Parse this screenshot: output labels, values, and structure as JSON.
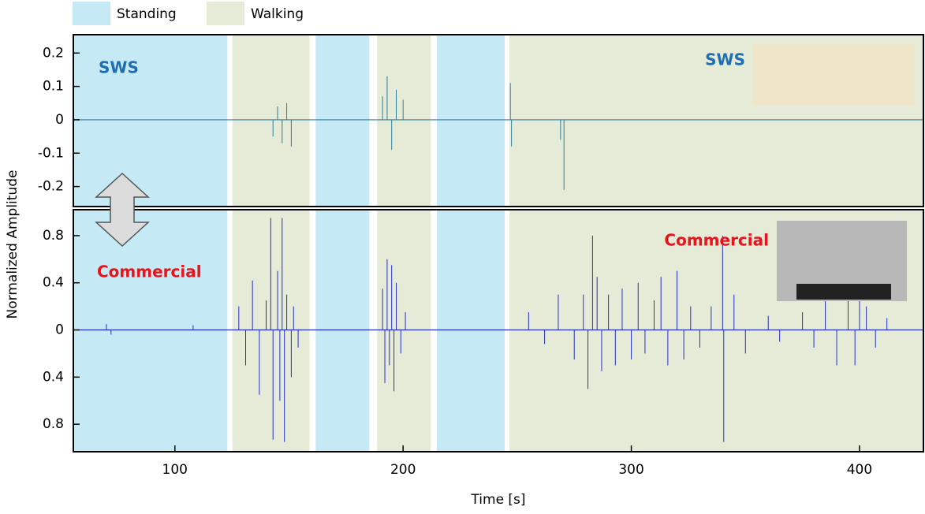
{
  "chart_data": [
    {
      "type": "spike",
      "label": "SWS",
      "label_color": "#1f6fb0",
      "color": "#2a7f9e",
      "y_label": "Normalized Amplitude",
      "regions": [
        {
          "name": "Standing",
          "color": "#c5e9f5",
          "spans": [
            [
              55.5,
              123
            ],
            [
              161.7,
              185.2
            ],
            [
              214.8,
              244.5
            ]
          ]
        },
        {
          "name": "Walking",
          "color": "#e6ebd8",
          "spans": [
            [
              125.2,
              159
            ],
            [
              188.6,
              212.1
            ],
            [
              246.6,
              428
            ]
          ]
        }
      ],
      "xlim": [
        55.5,
        428
      ],
      "ylim": [
        -0.26,
        0.255
      ],
      "yticks": [
        -0.2,
        -0.1,
        0,
        0.1,
        0.2
      ],
      "x": [
        143,
        145,
        147,
        149,
        151,
        191,
        193,
        195,
        197,
        200,
        247,
        247.5,
        269,
        270.5
      ],
      "values": [
        -0.05,
        0.04,
        -0.07,
        0.05,
        -0.08,
        0.07,
        0.13,
        -0.09,
        0.09,
        0.06,
        0.11,
        -0.08,
        -0.06,
        -0.21
      ]
    },
    {
      "type": "spike",
      "label": "Commercial",
      "label_color": "#e8141b",
      "color": "#2230c8",
      "x_label": "Time [s]",
      "xlim": [
        55.5,
        428
      ],
      "xticks": [
        100,
        200,
        300,
        400
      ],
      "ylim": [
        -1.033,
        1.02
      ],
      "yticks": [
        {
          "value": -0.8,
          "label": "0.8"
        },
        {
          "value": -0.4,
          "label": "0.4"
        },
        0,
        0.4,
        0.8
      ],
      "x": [
        70,
        72,
        108,
        128,
        131,
        134,
        137,
        140,
        142,
        143,
        145,
        146,
        147,
        148,
        149,
        151,
        152,
        154,
        191,
        192,
        193,
        194,
        195,
        196,
        197,
        199,
        201,
        255,
        262,
        268,
        275,
        279,
        281,
        283,
        285,
        287,
        290,
        293,
        296,
        300,
        303,
        306,
        310,
        313,
        316,
        320,
        323,
        326,
        330,
        335,
        340,
        340.5,
        345,
        350,
        360,
        365,
        375,
        380,
        385,
        390,
        395,
        398,
        400,
        403,
        407,
        412
      ],
      "values": [
        0.05,
        -0.04,
        0.04,
        0.2,
        -0.3,
        0.42,
        -0.55,
        0.25,
        0.95,
        -0.93,
        0.5,
        -0.6,
        0.95,
        -0.95,
        0.3,
        -0.4,
        0.2,
        -0.15,
        0.35,
        -0.45,
        0.6,
        -0.3,
        0.55,
        -0.52,
        0.4,
        -0.2,
        0.15,
        0.15,
        -0.12,
        0.3,
        -0.25,
        0.3,
        -0.5,
        0.8,
        0.45,
        -0.35,
        0.3,
        -0.3,
        0.35,
        -0.25,
        0.4,
        -0.2,
        0.25,
        0.45,
        -0.3,
        0.5,
        -0.25,
        0.2,
        -0.15,
        0.2,
        0.8,
        -0.95,
        0.3,
        -0.2,
        0.12,
        -0.1,
        0.15,
        -0.15,
        0.25,
        -0.3,
        0.6,
        -0.3,
        0.45,
        0.2,
        -0.15,
        0.1
      ]
    }
  ]
}
